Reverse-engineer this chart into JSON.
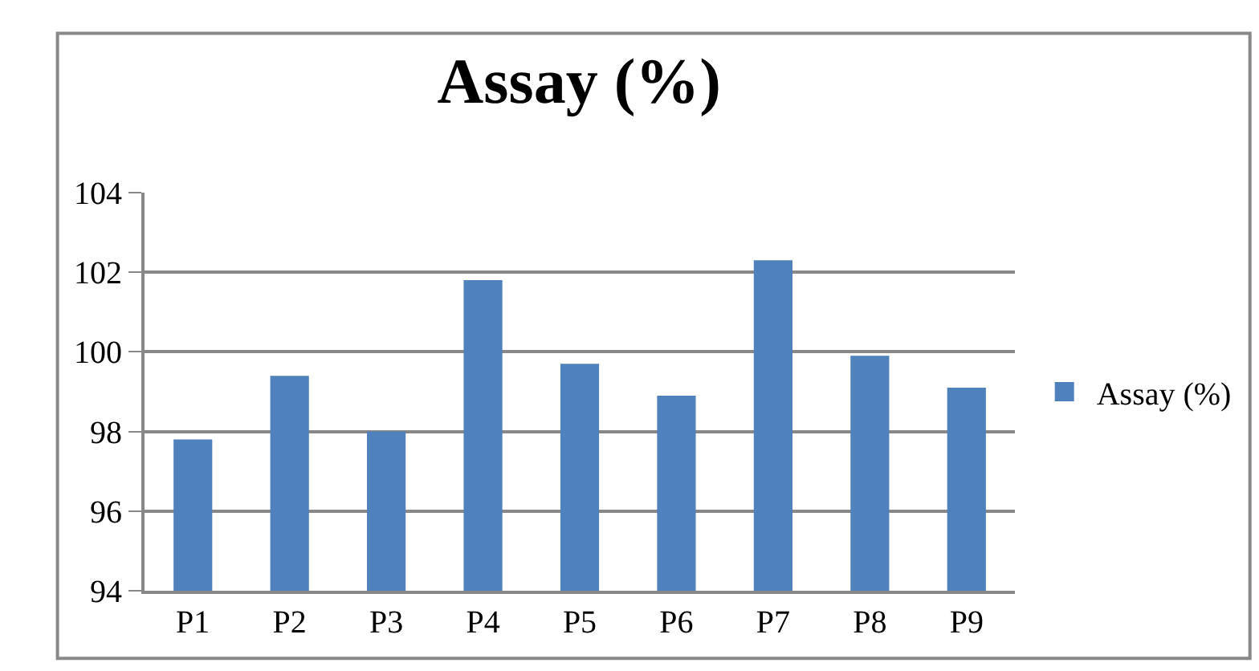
{
  "chart_data": {
    "type": "bar",
    "title": "Assay (%)",
    "categories": [
      "P1",
      "P2",
      "P3",
      "P4",
      "P5",
      "P6",
      "P7",
      "P8",
      "P9"
    ],
    "series": [
      {
        "name": "Assay (%)",
        "color": "#4f81bd",
        "values": [
          97.8,
          99.4,
          98.0,
          101.8,
          99.7,
          98.9,
          102.3,
          99.9,
          99.1
        ]
      }
    ],
    "ylim": [
      94,
      104
    ],
    "yticks": [
      94,
      96,
      98,
      100,
      102,
      104
    ],
    "grid": "y",
    "legend": "right"
  }
}
